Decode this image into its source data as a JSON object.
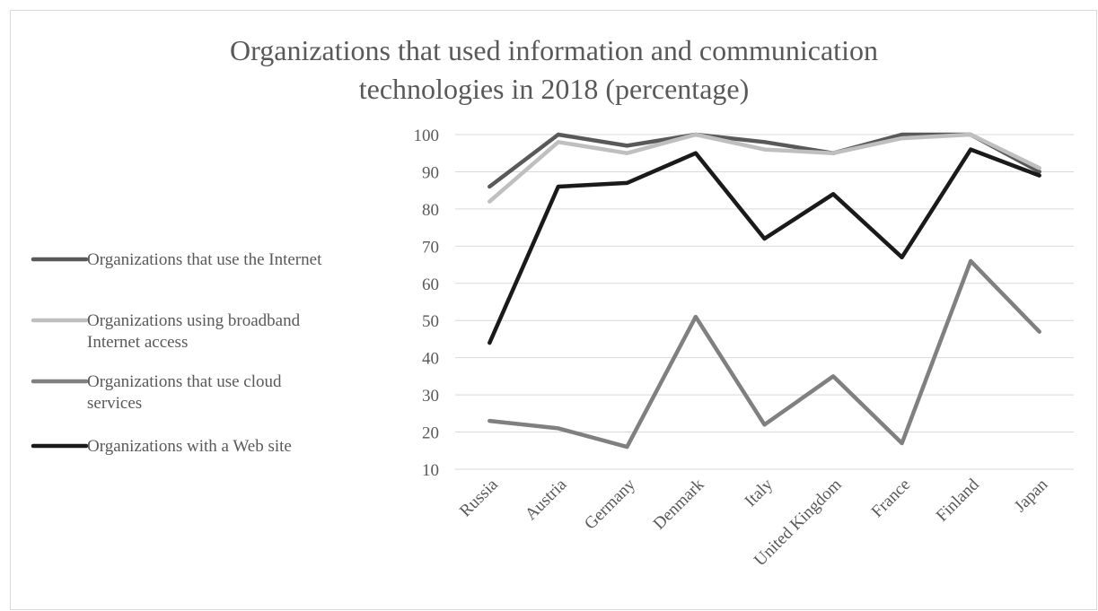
{
  "chart_data": {
    "type": "line",
    "title": [
      "Organizations that used information and communication",
      "technologies in 2018 (percentage)"
    ],
    "xlabel": "",
    "ylabel": "",
    "categories": [
      "Russia",
      "Austria",
      "Germany",
      "Denmark",
      "Italy",
      "United Kingdom",
      "France",
      "Finland",
      "Japan"
    ],
    "ylim": [
      10,
      100
    ],
    "yticks": [
      "10",
      "20",
      "30",
      "40",
      "50",
      "60",
      "70",
      "80",
      "90",
      "100"
    ],
    "grid": true,
    "legend_position": "left",
    "series": [
      {
        "name": "Organizations that use the Internet",
        "legend_lines": [
          "Organizations that use the Internet"
        ],
        "color": "#595959",
        "values": [
          86,
          100,
          97,
          100,
          98,
          95,
          100,
          100,
          90
        ]
      },
      {
        "name": "Organizations using broadband Internet access",
        "legend_lines": [
          "Organizations using broadband",
          "Internet access"
        ],
        "color": "#bfbfbf",
        "values": [
          82,
          98,
          95,
          100,
          96,
          95,
          99,
          100,
          91
        ]
      },
      {
        "name": "Organizations that use cloud services",
        "legend_lines": [
          "Organizations that use cloud",
          "services"
        ],
        "color": "#808080",
        "values": [
          23,
          21,
          16,
          51,
          22,
          35,
          17,
          66,
          47
        ]
      },
      {
        "name": "Organizations with a Web site",
        "legend_lines": [
          "Organizations with a Web site"
        ],
        "color": "#1a1a1a",
        "values": [
          44,
          86,
          87,
          95,
          72,
          84,
          67,
          96,
          89
        ]
      }
    ]
  }
}
